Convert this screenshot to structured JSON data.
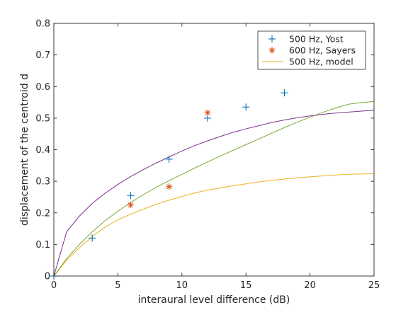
{
  "chart_data": {
    "type": "line",
    "xlabel": "interaural level difference (dB)",
    "ylabel": "displacement of the centroid d",
    "xlim": [
      0,
      25
    ],
    "ylim": [
      0,
      0.8
    ],
    "xticks": [
      0,
      5,
      10,
      15,
      20,
      25
    ],
    "yticks": [
      0,
      0.1,
      0.2,
      0.3,
      0.4,
      0.5,
      0.6,
      0.7,
      0.8
    ],
    "xtick_labels": [
      "0",
      "5",
      "10",
      "15",
      "20",
      "25"
    ],
    "ytick_labels": [
      "0",
      "0.1",
      "0.2",
      "0.3",
      "0.4",
      "0.5",
      "0.6",
      "0.7",
      "0.8"
    ],
    "grid": false,
    "legend_position": "top-right",
    "legend": [
      {
        "name": "500 Hz, Yost",
        "kind": "marker",
        "marker": "plus",
        "color": "#0072BD"
      },
      {
        "name": "600 Hz, Sayers",
        "kind": "marker",
        "marker": "asterisk",
        "color": "#D95319"
      },
      {
        "name": "500 Hz, model",
        "kind": "line",
        "color": "#EDB120"
      }
    ],
    "scatter_series": [
      {
        "name": "500 Hz, Yost",
        "marker": "plus",
        "color": "#0072BD",
        "x": [
          0,
          3,
          6,
          9,
          12,
          15,
          18
        ],
        "y": [
          0,
          0.12,
          0.255,
          0.37,
          0.5,
          0.535,
          0.58
        ]
      },
      {
        "name": "600 Hz, Sayers",
        "marker": "asterisk",
        "color": "#D95319",
        "x": [
          6,
          9,
          12
        ],
        "y": [
          0.225,
          0.283,
          0.517
        ]
      }
    ],
    "line_series": [
      {
        "color": "#EDB120",
        "x": [
          0,
          1,
          2,
          3,
          4,
          5,
          6,
          7,
          8,
          9,
          10,
          11,
          12,
          13,
          14,
          15,
          16,
          17,
          18,
          19,
          20,
          21,
          22,
          23,
          24,
          25
        ],
        "y": [
          0,
          0.05,
          0.09,
          0.125,
          0.155,
          0.178,
          0.196,
          0.212,
          0.227,
          0.24,
          0.252,
          0.263,
          0.272,
          0.279,
          0.286,
          0.292,
          0.298,
          0.303,
          0.307,
          0.311,
          0.314,
          0.317,
          0.32,
          0.322,
          0.323,
          0.324
        ]
      },
      {
        "color": "#77AC30",
        "x": [
          0,
          1,
          2,
          3,
          4,
          5,
          6,
          7,
          8,
          9,
          10,
          11,
          12,
          13,
          14,
          15,
          16,
          17,
          18,
          19,
          20,
          21,
          22,
          23,
          24,
          25
        ],
        "y": [
          0,
          0.055,
          0.1,
          0.14,
          0.175,
          0.205,
          0.233,
          0.258,
          0.281,
          0.302,
          0.322,
          0.342,
          0.361,
          0.38,
          0.398,
          0.416,
          0.434,
          0.452,
          0.47,
          0.487,
          0.503,
          0.518,
          0.532,
          0.544,
          0.549,
          0.553
        ]
      },
      {
        "color": "#7E2F8E",
        "x": [
          0,
          1,
          2,
          3,
          4,
          5,
          6,
          7,
          8,
          9,
          10,
          11,
          12,
          13,
          14,
          15,
          16,
          17,
          18,
          19,
          20,
          21,
          22,
          23,
          24,
          25
        ],
        "y": [
          0,
          0.14,
          0.19,
          0.23,
          0.262,
          0.29,
          0.315,
          0.337,
          0.358,
          0.377,
          0.396,
          0.413,
          0.428,
          0.442,
          0.455,
          0.466,
          0.476,
          0.486,
          0.494,
          0.501,
          0.507,
          0.512,
          0.516,
          0.519,
          0.522,
          0.525
        ]
      }
    ]
  }
}
